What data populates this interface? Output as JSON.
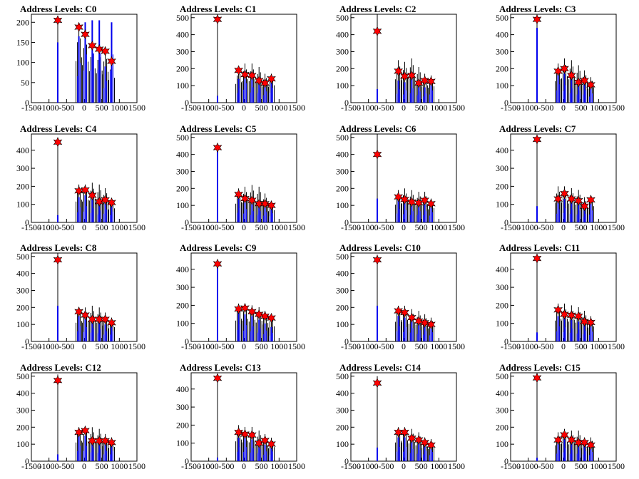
{
  "chart_data": [
    {
      "title": "Address Levels: C0",
      "type": "histogram",
      "xlim": [
        -1500,
        1500
      ],
      "ylim": [
        0,
        220
      ],
      "yticks": [
        0,
        50,
        100,
        150,
        200
      ],
      "peaks": [
        {
          "x": -750,
          "y": 205
        },
        {
          "x": -150,
          "y": 188
        },
        {
          "x": 30,
          "y": 170
        },
        {
          "x": 230,
          "y": 142
        },
        {
          "x": 430,
          "y": 133
        },
        {
          "x": 600,
          "y": 128
        },
        {
          "x": 780,
          "y": 103
        }
      ],
      "blue_heights": [
        150,
        165,
        200,
        205,
        205,
        90,
        200
      ],
      "markers": [
        [
          -750,
          205
        ],
        [
          -150,
          188
        ],
        [
          30,
          170
        ],
        [
          230,
          142
        ],
        [
          430,
          133
        ],
        [
          600,
          128
        ],
        [
          780,
          103
        ]
      ]
    },
    {
      "title": "Address Levels: C1",
      "type": "histogram",
      "xlim": [
        -1500,
        1500
      ],
      "ylim": [
        0,
        520
      ],
      "yticks": [
        0,
        100,
        200,
        300,
        400,
        500
      ],
      "peaks": [
        {
          "x": -750,
          "y": 520
        },
        {
          "x": -150,
          "y": 200
        },
        {
          "x": 30,
          "y": 230
        },
        {
          "x": 230,
          "y": 230
        },
        {
          "x": 430,
          "y": 210
        },
        {
          "x": 600,
          "y": 170
        },
        {
          "x": 780,
          "y": 170
        }
      ],
      "blue_heights": [
        40,
        140,
        190,
        150,
        140,
        110,
        145
      ],
      "markers": [
        [
          -750,
          490
        ],
        [
          -150,
          190
        ],
        [
          30,
          165
        ],
        [
          230,
          160
        ],
        [
          430,
          130
        ],
        [
          600,
          115
        ],
        [
          780,
          140
        ]
      ]
    },
    {
      "title": "Address Levels: C2",
      "type": "histogram",
      "xlim": [
        -1500,
        1500
      ],
      "ylim": [
        0,
        520
      ],
      "yticks": [
        0,
        100,
        200,
        300,
        400,
        500
      ],
      "peaks": [
        {
          "x": -750,
          "y": 520
        },
        {
          "x": -150,
          "y": 250
        },
        {
          "x": 30,
          "y": 240
        },
        {
          "x": 230,
          "y": 260
        },
        {
          "x": 430,
          "y": 210
        },
        {
          "x": 600,
          "y": 170
        },
        {
          "x": 780,
          "y": 160
        }
      ],
      "blue_heights": [
        80,
        130,
        120,
        140,
        110,
        90,
        120
      ],
      "markers": [
        [
          -750,
          420
        ],
        [
          -150,
          185
        ],
        [
          30,
          155
        ],
        [
          230,
          160
        ],
        [
          430,
          115
        ],
        [
          600,
          130
        ],
        [
          780,
          125
        ]
      ]
    },
    {
      "title": "Address Levels: C3",
      "type": "histogram",
      "xlim": [
        -1500,
        1500
      ],
      "ylim": [
        0,
        520
      ],
      "yticks": [
        0,
        100,
        200,
        300,
        400,
        500
      ],
      "peaks": [
        {
          "x": -750,
          "y": 500
        },
        {
          "x": -150,
          "y": 230
        },
        {
          "x": 30,
          "y": 260
        },
        {
          "x": 230,
          "y": 250
        },
        {
          "x": 430,
          "y": 220
        },
        {
          "x": 600,
          "y": 190
        },
        {
          "x": 780,
          "y": 150
        }
      ],
      "blue_heights": [
        440,
        180,
        170,
        140,
        120,
        120,
        90
      ],
      "markers": [
        [
          -750,
          490
        ],
        [
          -150,
          185
        ],
        [
          30,
          200
        ],
        [
          230,
          160
        ],
        [
          430,
          120
        ],
        [
          600,
          130
        ],
        [
          780,
          105
        ]
      ]
    },
    {
      "title": "Address Levels: C4",
      "type": "histogram",
      "xlim": [
        -1500,
        1500
      ],
      "ylim": [
        0,
        490
      ],
      "yticks": [
        0,
        100,
        200,
        300,
        400
      ],
      "peaks": [
        {
          "x": -750,
          "y": 470
        },
        {
          "x": -150,
          "y": 210
        },
        {
          "x": 30,
          "y": 210
        },
        {
          "x": 230,
          "y": 220
        },
        {
          "x": 430,
          "y": 210
        },
        {
          "x": 600,
          "y": 190
        },
        {
          "x": 780,
          "y": 130
        }
      ],
      "blue_heights": [
        40,
        140,
        150,
        130,
        110,
        120,
        100
      ],
      "markers": [
        [
          -750,
          445
        ],
        [
          -150,
          175
        ],
        [
          30,
          180
        ],
        [
          230,
          150
        ],
        [
          430,
          115
        ],
        [
          600,
          125
        ],
        [
          780,
          110
        ]
      ]
    },
    {
      "title": "Address Levels: C5",
      "type": "histogram",
      "xlim": [
        -1500,
        1500
      ],
      "ylim": [
        0,
        520
      ],
      "yticks": [
        0,
        100,
        200,
        300,
        400,
        500
      ],
      "peaks": [
        {
          "x": -750,
          "y": 460
        },
        {
          "x": -150,
          "y": 200
        },
        {
          "x": 30,
          "y": 210
        },
        {
          "x": 230,
          "y": 220
        },
        {
          "x": 430,
          "y": 210
        },
        {
          "x": 600,
          "y": 170
        },
        {
          "x": 780,
          "y": 120
        }
      ],
      "blue_heights": [
        440,
        140,
        130,
        110,
        110,
        100,
        90
      ],
      "markers": [
        [
          -750,
          440
        ],
        [
          -150,
          165
        ],
        [
          30,
          140
        ],
        [
          230,
          130
        ],
        [
          430,
          110
        ],
        [
          600,
          110
        ],
        [
          780,
          100
        ]
      ]
    },
    {
      "title": "Address Levels: C6",
      "type": "histogram",
      "xlim": [
        -1500,
        1500
      ],
      "ylim": [
        0,
        520
      ],
      "yticks": [
        0,
        100,
        200,
        300,
        400,
        500
      ],
      "peaks": [
        {
          "x": -750,
          "y": 520
        },
        {
          "x": -150,
          "y": 190
        },
        {
          "x": 30,
          "y": 200
        },
        {
          "x": 230,
          "y": 190
        },
        {
          "x": 430,
          "y": 180
        },
        {
          "x": 600,
          "y": 180
        },
        {
          "x": 780,
          "y": 140
        }
      ],
      "blue_heights": [
        140,
        130,
        120,
        110,
        110,
        110,
        100
      ],
      "markers": [
        [
          -750,
          400
        ],
        [
          -150,
          150
        ],
        [
          30,
          135
        ],
        [
          230,
          120
        ],
        [
          430,
          115
        ],
        [
          600,
          130
        ],
        [
          780,
          110
        ]
      ]
    },
    {
      "title": "Address Levels: C7",
      "type": "histogram",
      "xlim": [
        -1500,
        1500
      ],
      "ylim": [
        0,
        490
      ],
      "yticks": [
        0,
        100,
        200,
        300,
        400
      ],
      "peaks": [
        {
          "x": -750,
          "y": 480
        },
        {
          "x": -150,
          "y": 200
        },
        {
          "x": 30,
          "y": 200
        },
        {
          "x": 230,
          "y": 190
        },
        {
          "x": 430,
          "y": 180
        },
        {
          "x": 600,
          "y": 140
        },
        {
          "x": 780,
          "y": 150
        }
      ],
      "blue_heights": [
        90,
        120,
        130,
        120,
        110,
        80,
        110
      ],
      "markers": [
        [
          -750,
          460
        ],
        [
          -150,
          130
        ],
        [
          30,
          160
        ],
        [
          230,
          130
        ],
        [
          430,
          120
        ],
        [
          600,
          90
        ],
        [
          780,
          125
        ]
      ]
    },
    {
      "title": "Address Levels: C8",
      "type": "histogram",
      "xlim": [
        -1500,
        1500
      ],
      "ylim": [
        0,
        520
      ],
      "yticks": [
        0,
        100,
        200,
        300,
        400,
        500
      ],
      "peaks": [
        {
          "x": -750,
          "y": 520
        },
        {
          "x": -150,
          "y": 200
        },
        {
          "x": 30,
          "y": 200
        },
        {
          "x": 230,
          "y": 210
        },
        {
          "x": 430,
          "y": 200
        },
        {
          "x": 600,
          "y": 170
        },
        {
          "x": 780,
          "y": 140
        }
      ],
      "blue_heights": [
        210,
        150,
        140,
        130,
        120,
        100,
        100
      ],
      "markers": [
        [
          -750,
          480
        ],
        [
          -150,
          175
        ],
        [
          30,
          155
        ],
        [
          230,
          130
        ],
        [
          430,
          130
        ],
        [
          600,
          130
        ],
        [
          780,
          110
        ]
      ]
    },
    {
      "title": "Address Levels: C9",
      "type": "histogram",
      "xlim": [
        -1500,
        1500
      ],
      "ylim": [
        0,
        490
      ],
      "yticks": [
        0,
        100,
        200,
        300,
        400
      ],
      "peaks": [
        {
          "x": -750,
          "y": 450
        },
        {
          "x": -150,
          "y": 210
        },
        {
          "x": 30,
          "y": 210
        },
        {
          "x": 230,
          "y": 200
        },
        {
          "x": 430,
          "y": 190
        },
        {
          "x": 600,
          "y": 170
        },
        {
          "x": 780,
          "y": 140
        }
      ],
      "blue_heights": [
        440,
        160,
        150,
        140,
        120,
        100,
        80
      ],
      "markers": [
        [
          -750,
          430
        ],
        [
          -150,
          180
        ],
        [
          30,
          185
        ],
        [
          230,
          165
        ],
        [
          430,
          150
        ],
        [
          600,
          140
        ],
        [
          780,
          130
        ]
      ]
    },
    {
      "title": "Address Levels: C10",
      "type": "histogram",
      "xlim": [
        -1500,
        1500
      ],
      "ylim": [
        0,
        520
      ],
      "yticks": [
        0,
        100,
        200,
        300,
        400,
        500
      ],
      "peaks": [
        {
          "x": -750,
          "y": 510
        },
        {
          "x": -150,
          "y": 210
        },
        {
          "x": 30,
          "y": 210
        },
        {
          "x": 230,
          "y": 190
        },
        {
          "x": 430,
          "y": 180
        },
        {
          "x": 600,
          "y": 160
        },
        {
          "x": 780,
          "y": 140
        }
      ],
      "blue_heights": [
        210,
        150,
        140,
        130,
        110,
        100,
        90
      ],
      "markers": [
        [
          -750,
          480
        ],
        [
          -150,
          180
        ],
        [
          30,
          170
        ],
        [
          230,
          140
        ],
        [
          430,
          120
        ],
        [
          600,
          110
        ],
        [
          780,
          100
        ]
      ]
    },
    {
      "title": "Address Levels: C11",
      "type": "histogram",
      "xlim": [
        -1500,
        1500
      ],
      "ylim": [
        0,
        490
      ],
      "yticks": [
        0,
        100,
        200,
        300,
        400
      ],
      "peaks": [
        {
          "x": -750,
          "y": 480
        },
        {
          "x": -150,
          "y": 210
        },
        {
          "x": 30,
          "y": 210
        },
        {
          "x": 230,
          "y": 200
        },
        {
          "x": 430,
          "y": 190
        },
        {
          "x": 600,
          "y": 170
        },
        {
          "x": 780,
          "y": 140
        }
      ],
      "blue_heights": [
        50,
        140,
        130,
        120,
        110,
        100,
        90
      ],
      "markers": [
        [
          -750,
          460
        ],
        [
          -150,
          175
        ],
        [
          30,
          150
        ],
        [
          230,
          145
        ],
        [
          430,
          140
        ],
        [
          600,
          110
        ],
        [
          780,
          105
        ]
      ]
    },
    {
      "title": "Address Levels: C12",
      "type": "histogram",
      "xlim": [
        -1500,
        1500
      ],
      "ylim": [
        0,
        520
      ],
      "yticks": [
        0,
        100,
        200,
        300,
        400,
        500
      ],
      "peaks": [
        {
          "x": -750,
          "y": 510
        },
        {
          "x": -150,
          "y": 200
        },
        {
          "x": 30,
          "y": 200
        },
        {
          "x": 230,
          "y": 200
        },
        {
          "x": 430,
          "y": 190
        },
        {
          "x": 600,
          "y": 160
        },
        {
          "x": 780,
          "y": 140
        }
      ],
      "blue_heights": [
        40,
        150,
        150,
        130,
        120,
        100,
        100
      ],
      "markers": [
        [
          -750,
          475
        ],
        [
          -150,
          170
        ],
        [
          30,
          180
        ],
        [
          230,
          120
        ],
        [
          430,
          120
        ],
        [
          600,
          120
        ],
        [
          780,
          110
        ]
      ]
    },
    {
      "title": "Address Levels: C13",
      "type": "histogram",
      "xlim": [
        -1500,
        1500
      ],
      "ylim": [
        0,
        490
      ],
      "yticks": [
        0,
        100,
        200,
        300,
        400
      ],
      "peaks": [
        {
          "x": -750,
          "y": 480
        },
        {
          "x": -150,
          "y": 200
        },
        {
          "x": 30,
          "y": 190
        },
        {
          "x": 230,
          "y": 190
        },
        {
          "x": 430,
          "y": 170
        },
        {
          "x": 600,
          "y": 150
        },
        {
          "x": 780,
          "y": 130
        }
      ],
      "blue_heights": [
        20,
        130,
        130,
        120,
        110,
        90,
        90
      ],
      "markers": [
        [
          -750,
          460
        ],
        [
          -150,
          160
        ],
        [
          30,
          150
        ],
        [
          230,
          145
        ],
        [
          430,
          100
        ],
        [
          600,
          115
        ],
        [
          780,
          95
        ]
      ]
    },
    {
      "title": "Address Levels: C14",
      "type": "histogram",
      "xlim": [
        -1500,
        1500
      ],
      "ylim": [
        0,
        520
      ],
      "yticks": [
        0,
        100,
        200,
        300,
        400,
        500
      ],
      "peaks": [
        {
          "x": -750,
          "y": 500
        },
        {
          "x": -150,
          "y": 200
        },
        {
          "x": 30,
          "y": 200
        },
        {
          "x": 230,
          "y": 190
        },
        {
          "x": 430,
          "y": 170
        },
        {
          "x": 600,
          "y": 140
        },
        {
          "x": 780,
          "y": 130
        }
      ],
      "blue_heights": [
        80,
        140,
        140,
        120,
        110,
        100,
        90
      ],
      "markers": [
        [
          -750,
          460
        ],
        [
          -150,
          170
        ],
        [
          30,
          170
        ],
        [
          230,
          135
        ],
        [
          430,
          125
        ],
        [
          600,
          110
        ],
        [
          780,
          95
        ]
      ]
    },
    {
      "title": "Address Levels: C15",
      "type": "histogram",
      "xlim": [
        -1500,
        1500
      ],
      "ylim": [
        0,
        520
      ],
      "yticks": [
        0,
        100,
        200,
        300,
        400,
        500
      ],
      "peaks": [
        {
          "x": -750,
          "y": 520
        },
        {
          "x": -150,
          "y": 170
        },
        {
          "x": 30,
          "y": 190
        },
        {
          "x": 230,
          "y": 180
        },
        {
          "x": 430,
          "y": 180
        },
        {
          "x": 600,
          "y": 140
        },
        {
          "x": 780,
          "y": 140
        }
      ],
      "blue_heights": [
        20,
        110,
        130,
        110,
        110,
        100,
        90
      ],
      "markers": [
        [
          -750,
          490
        ],
        [
          -150,
          125
        ],
        [
          30,
          155
        ],
        [
          230,
          125
        ],
        [
          430,
          110
        ],
        [
          600,
          110
        ],
        [
          780,
          95
        ]
      ]
    }
  ],
  "xticks": [
    -1500,
    -1000,
    -500,
    0,
    500,
    1000,
    1500
  ],
  "colors": {
    "blue_hist": "#0000ee",
    "black_hist": "#000000",
    "marker_fill": "#ff0000",
    "axis": "#000000"
  }
}
